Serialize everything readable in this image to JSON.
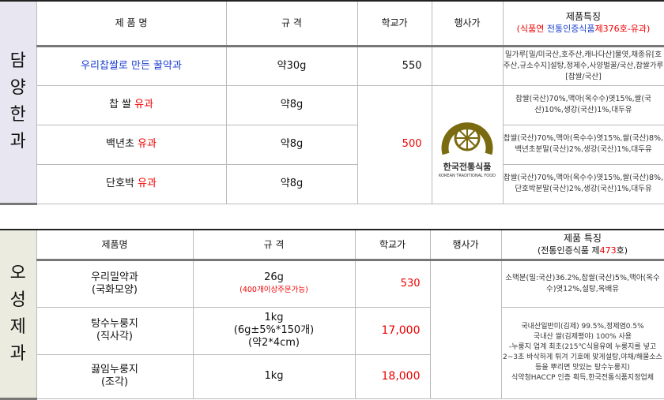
{
  "section1": {
    "label": "담\n양\n한\n과",
    "headers": {
      "name": "제   품   명",
      "spec": "규 격",
      "price": "학교가",
      "vendor": "행사가",
      "features": "제품특징",
      "cert_open": "(식품연  ",
      "cert_blue": "전통인증식품",
      "cert_red": "제376호-유과)"
    },
    "rows": [
      {
        "name": "우리찹쌀로 만든 꿀약과",
        "name_red": "",
        "spec": "약30g",
        "price": "550",
        "features": "밀가루[밀/미국산,호주산,캐나다산]물엿,채종유[호주산,규소수지]설탕,정제수,사양벌꿀/국산,찹쌀가루[찹쌀/국산]"
      },
      {
        "name": "찹 쌀 ",
        "name_red": "유과",
        "spec": "약8g",
        "features": "찹쌀(국산)70%,맥아(옥수수)엿15%,쌀(국산)10%,생강(국산)1%,대두유"
      },
      {
        "name": "백년초 ",
        "name_red": "유과",
        "spec": "약8g",
        "features": "찹쌀(국산)70%,맥아(옥수수)엿15%,쌀(국산)8%,백년초분말(국산)2%,생강(국산)1%,대두유"
      },
      {
        "name": "단호박 ",
        "name_red": "유과",
        "spec": "약8g",
        "features": "찹쌀(국산)70%,맥아(옥수수)엿15%,쌀(국산)8%,단호박분말(국산)2%,생강(국산)1%,대두유"
      }
    ],
    "shared_price": "500",
    "logo": {
      "text": "한국전통식품",
      "sub": "KOREAN TRADITIONAL FOOD"
    }
  },
  "section2": {
    "label": "오\n성\n제\n과",
    "headers": {
      "name": "제품명",
      "spec": "규   격",
      "price": "학교가",
      "vendor": "행사가",
      "features": "제품 특징",
      "cert_open": "(전통인증식품 제",
      "cert_red": "473",
      "cert_close": "호)"
    },
    "rows": [
      {
        "name": "우리밀약과\n(국화모양)",
        "spec": "26g",
        "spec_note": "(400개이상주문가능)",
        "price": "530",
        "features": "소맥분(밀:국산)36.2%,찹쌀(국산)5%,맥아(옥수수)엿12%,설탕,옥배유"
      },
      {
        "name": "탕수누룽지\n(직사각)",
        "spec": "1kg\n(6g±5%*150개)\n(약2*4cm)",
        "spec_note": "",
        "price": "17,000",
        "features": "국내산일반미(김제) 99.5%,정제염0.5%\n국내산 쌀(김제평야) 100% 사용\n-누룽지 업계 최초(215℃식용유에 누룽지를 넣고 2~3초 바삭하게 튀겨 기호에 맞게설탕,야채/해물소스등을 뿌리면 맛있는 탕수누룽지)\n식약청HACCP 인증 획득,한국전통식품지정업체"
      },
      {
        "name": "끓임누룽지\n(조각)",
        "spec": "1kg",
        "spec_note": "",
        "price": "18,000"
      }
    ]
  },
  "colors": {
    "accent_red": "#e00000",
    "accent_blue": "#1a3fd0",
    "logo": "#7a6a10"
  }
}
